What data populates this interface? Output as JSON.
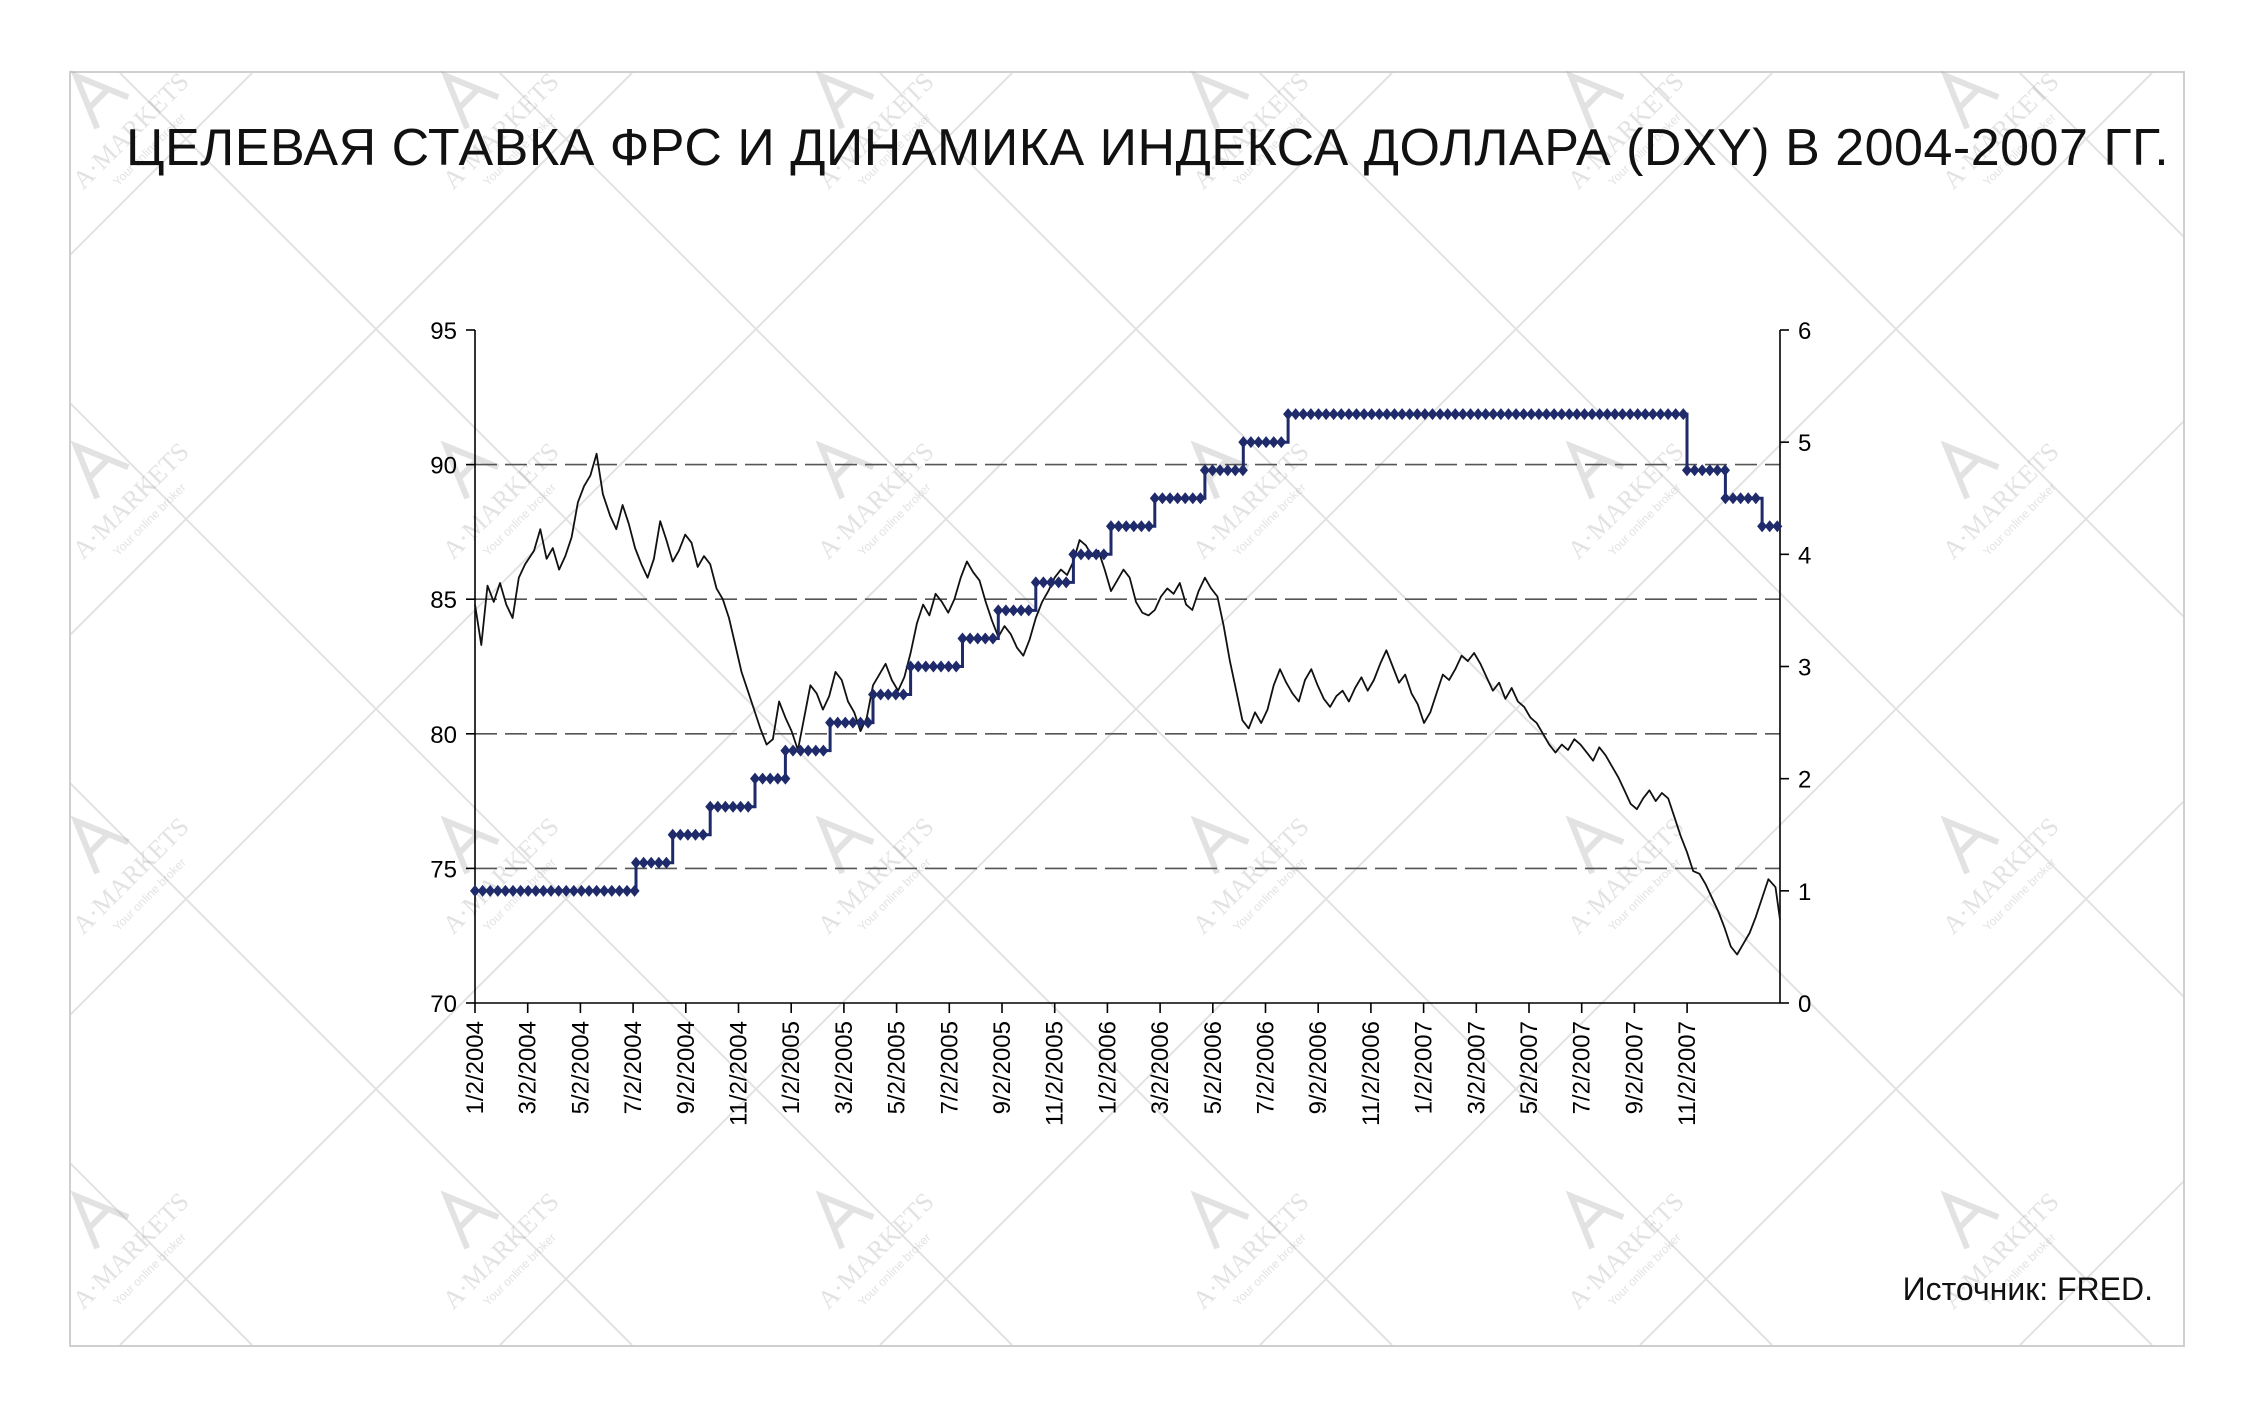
{
  "title": "ЦЕЛЕВАЯ СТАВКА ФРС И ДИНАМИКА ИНДЕКСА ДОЛЛАРА (DXY) В 2004-2007 ГГ.",
  "source": "Источник: FRED.",
  "watermark": {
    "brand": "A·MARKETS",
    "tagline": "Your online broker"
  },
  "colors": {
    "fed_rate": "#1f2a6b",
    "dxy": "#111111",
    "grid": "#555555",
    "frame": "#cfcfcf"
  },
  "chart_data": {
    "type": "line",
    "x_tick_labels": [
      "1/2/2004",
      "3/2/2004",
      "5/2/2004",
      "7/2/2004",
      "9/2/2004",
      "11/2/2004",
      "1/2/2005",
      "3/2/2005",
      "5/2/2005",
      "7/2/2005",
      "9/2/2005",
      "11/2/2005",
      "1/2/2006",
      "3/2/2006",
      "5/2/2006",
      "7/2/2006",
      "9/2/2006",
      "11/2/2006",
      "1/2/2007",
      "3/2/2007",
      "5/2/2007",
      "7/2/2007",
      "9/2/2007",
      "11/2/2007"
    ],
    "xlim": [
      "2004-01-02",
      "2007-12-31"
    ],
    "y_left": {
      "min": 70,
      "max": 95,
      "ticks": [
        70,
        75,
        80,
        85,
        90,
        95
      ]
    },
    "y_right": {
      "min": 0,
      "max": 6,
      "ticks": [
        0,
        1,
        2,
        3,
        4,
        5,
        6
      ]
    },
    "grid": {
      "horizontal_dashed_at_left": [
        75,
        80,
        85,
        90
      ]
    },
    "series": [
      {
        "axis": "left",
        "style": "thin-line",
        "points": [
          [
            "2004-01-02",
            84.8
          ],
          [
            "2004-01-09",
            83.3
          ],
          [
            "2004-01-16",
            85.5
          ],
          [
            "2004-01-23",
            84.9
          ],
          [
            "2004-01-30",
            85.6
          ],
          [
            "2004-02-06",
            84.8
          ],
          [
            "2004-02-13",
            84.3
          ],
          [
            "2004-02-20",
            85.8
          ],
          [
            "2004-02-27",
            86.3
          ],
          [
            "2004-03-08",
            86.8
          ],
          [
            "2004-03-15",
            87.6
          ],
          [
            "2004-03-22",
            86.5
          ],
          [
            "2004-03-29",
            86.9
          ],
          [
            "2004-04-05",
            86.1
          ],
          [
            "2004-04-12",
            86.6
          ],
          [
            "2004-04-19",
            87.3
          ],
          [
            "2004-04-26",
            88.6
          ],
          [
            "2004-05-03",
            89.2
          ],
          [
            "2004-05-10",
            89.6
          ],
          [
            "2004-05-17",
            90.4
          ],
          [
            "2004-05-24",
            88.9
          ],
          [
            "2004-06-01",
            88.1
          ],
          [
            "2004-06-08",
            87.6
          ],
          [
            "2004-06-15",
            88.5
          ],
          [
            "2004-06-22",
            87.8
          ],
          [
            "2004-06-29",
            86.9
          ],
          [
            "2004-07-06",
            86.3
          ],
          [
            "2004-07-13",
            85.8
          ],
          [
            "2004-07-20",
            86.5
          ],
          [
            "2004-07-27",
            87.9
          ],
          [
            "2004-08-03",
            87.2
          ],
          [
            "2004-08-10",
            86.4
          ],
          [
            "2004-08-17",
            86.8
          ],
          [
            "2004-08-24",
            87.4
          ],
          [
            "2004-08-31",
            87.1
          ],
          [
            "2004-09-07",
            86.2
          ],
          [
            "2004-09-14",
            86.6
          ],
          [
            "2004-09-21",
            86.3
          ],
          [
            "2004-09-28",
            85.4
          ],
          [
            "2004-10-05",
            85.0
          ],
          [
            "2004-10-12",
            84.3
          ],
          [
            "2004-10-19",
            83.3
          ],
          [
            "2004-10-26",
            82.3
          ],
          [
            "2004-11-02",
            81.6
          ],
          [
            "2004-11-09",
            80.9
          ],
          [
            "2004-11-16",
            80.2
          ],
          [
            "2004-11-23",
            79.6
          ],
          [
            "2004-11-30",
            79.8
          ],
          [
            "2004-12-07",
            81.2
          ],
          [
            "2004-12-14",
            80.6
          ],
          [
            "2004-12-21",
            80.1
          ],
          [
            "2004-12-28",
            79.4
          ],
          [
            "2005-01-04",
            80.6
          ],
          [
            "2005-01-11",
            81.8
          ],
          [
            "2005-01-18",
            81.5
          ],
          [
            "2005-01-25",
            80.9
          ],
          [
            "2005-02-01",
            81.4
          ],
          [
            "2005-02-08",
            82.3
          ],
          [
            "2005-02-15",
            82.0
          ],
          [
            "2005-02-22",
            81.2
          ],
          [
            "2005-03-01",
            80.8
          ],
          [
            "2005-03-08",
            80.1
          ],
          [
            "2005-03-15",
            80.6
          ],
          [
            "2005-03-22",
            81.8
          ],
          [
            "2005-03-29",
            82.2
          ],
          [
            "2005-04-05",
            82.6
          ],
          [
            "2005-04-12",
            82.0
          ],
          [
            "2005-04-19",
            81.6
          ],
          [
            "2005-04-26",
            82.1
          ],
          [
            "2005-05-03",
            83.0
          ],
          [
            "2005-05-10",
            84.1
          ],
          [
            "2005-05-17",
            84.8
          ],
          [
            "2005-05-24",
            84.4
          ],
          [
            "2005-05-31",
            85.2
          ],
          [
            "2005-06-07",
            84.9
          ],
          [
            "2005-06-14",
            84.5
          ],
          [
            "2005-06-21",
            85.0
          ],
          [
            "2005-06-28",
            85.8
          ],
          [
            "2005-07-05",
            86.4
          ],
          [
            "2005-07-12",
            86.0
          ],
          [
            "2005-07-19",
            85.7
          ],
          [
            "2005-07-26",
            84.9
          ],
          [
            "2005-08-02",
            84.2
          ],
          [
            "2005-08-09",
            83.6
          ],
          [
            "2005-08-16",
            84.0
          ],
          [
            "2005-08-23",
            83.7
          ],
          [
            "2005-08-30",
            83.2
          ],
          [
            "2005-09-06",
            82.9
          ],
          [
            "2005-09-13",
            83.5
          ],
          [
            "2005-09-20",
            84.3
          ],
          [
            "2005-09-27",
            84.9
          ],
          [
            "2005-10-04",
            85.3
          ],
          [
            "2005-10-11",
            85.8
          ],
          [
            "2005-10-18",
            86.1
          ],
          [
            "2005-10-25",
            85.9
          ],
          [
            "2005-11-01",
            86.4
          ],
          [
            "2005-11-08",
            87.2
          ],
          [
            "2005-11-15",
            87.0
          ],
          [
            "2005-11-22",
            86.6
          ],
          [
            "2005-11-29",
            86.8
          ],
          [
            "2005-12-06",
            86.1
          ],
          [
            "2005-12-13",
            85.3
          ],
          [
            "2005-12-20",
            85.7
          ],
          [
            "2005-12-27",
            86.1
          ],
          [
            "2006-01-03",
            85.8
          ],
          [
            "2006-01-10",
            84.9
          ],
          [
            "2006-01-17",
            84.5
          ],
          [
            "2006-01-24",
            84.4
          ],
          [
            "2006-01-31",
            84.6
          ],
          [
            "2006-02-07",
            85.1
          ],
          [
            "2006-02-14",
            85.4
          ],
          [
            "2006-02-21",
            85.2
          ],
          [
            "2006-02-28",
            85.6
          ],
          [
            "2006-03-07",
            84.8
          ],
          [
            "2006-03-14",
            84.6
          ],
          [
            "2006-03-21",
            85.3
          ],
          [
            "2006-03-28",
            85.8
          ],
          [
            "2006-04-04",
            85.4
          ],
          [
            "2006-04-11",
            85.1
          ],
          [
            "2006-04-18",
            84.0
          ],
          [
            "2006-04-25",
            82.7
          ],
          [
            "2006-05-02",
            81.6
          ],
          [
            "2006-05-09",
            80.5
          ],
          [
            "2006-05-16",
            80.2
          ],
          [
            "2006-05-23",
            80.8
          ],
          [
            "2006-05-30",
            80.4
          ],
          [
            "2006-06-06",
            80.9
          ],
          [
            "2006-06-13",
            81.8
          ],
          [
            "2006-06-20",
            82.4
          ],
          [
            "2006-06-27",
            81.9
          ],
          [
            "2006-07-04",
            81.5
          ],
          [
            "2006-07-11",
            81.2
          ],
          [
            "2006-07-18",
            82.0
          ],
          [
            "2006-07-25",
            82.4
          ],
          [
            "2006-08-01",
            81.8
          ],
          [
            "2006-08-08",
            81.3
          ],
          [
            "2006-08-15",
            81.0
          ],
          [
            "2006-08-22",
            81.4
          ],
          [
            "2006-08-29",
            81.6
          ],
          [
            "2006-09-05",
            81.2
          ],
          [
            "2006-09-12",
            81.7
          ],
          [
            "2006-09-19",
            82.1
          ],
          [
            "2006-09-26",
            81.6
          ],
          [
            "2006-10-03",
            82.0
          ],
          [
            "2006-10-10",
            82.6
          ],
          [
            "2006-10-17",
            83.1
          ],
          [
            "2006-10-24",
            82.5
          ],
          [
            "2006-10-31",
            81.9
          ],
          [
            "2006-11-07",
            82.2
          ],
          [
            "2006-11-14",
            81.5
          ],
          [
            "2006-11-21",
            81.1
          ],
          [
            "2006-11-28",
            80.4
          ],
          [
            "2006-12-05",
            80.8
          ],
          [
            "2006-12-12",
            81.5
          ],
          [
            "2006-12-19",
            82.2
          ],
          [
            "2006-12-26",
            82.0
          ],
          [
            "2007-01-02",
            82.4
          ],
          [
            "2007-01-09",
            82.9
          ],
          [
            "2007-01-16",
            82.7
          ],
          [
            "2007-01-23",
            83.0
          ],
          [
            "2007-01-30",
            82.6
          ],
          [
            "2007-02-06",
            82.1
          ],
          [
            "2007-02-13",
            81.6
          ],
          [
            "2007-02-20",
            81.9
          ],
          [
            "2007-02-27",
            81.3
          ],
          [
            "2007-03-06",
            81.7
          ],
          [
            "2007-03-13",
            81.2
          ],
          [
            "2007-03-20",
            81.0
          ],
          [
            "2007-03-27",
            80.6
          ],
          [
            "2007-04-03",
            80.4
          ],
          [
            "2007-04-10",
            80.0
          ],
          [
            "2007-04-17",
            79.6
          ],
          [
            "2007-04-24",
            79.3
          ],
          [
            "2007-05-01",
            79.6
          ],
          [
            "2007-05-08",
            79.4
          ],
          [
            "2007-05-15",
            79.8
          ],
          [
            "2007-05-22",
            79.6
          ],
          [
            "2007-05-29",
            79.3
          ],
          [
            "2007-06-05",
            79.0
          ],
          [
            "2007-06-12",
            79.5
          ],
          [
            "2007-06-19",
            79.2
          ],
          [
            "2007-06-26",
            78.8
          ],
          [
            "2007-07-03",
            78.4
          ],
          [
            "2007-07-10",
            77.9
          ],
          [
            "2007-07-17",
            77.4
          ],
          [
            "2007-07-24",
            77.2
          ],
          [
            "2007-07-31",
            77.6
          ],
          [
            "2007-08-07",
            77.9
          ],
          [
            "2007-08-14",
            77.5
          ],
          [
            "2007-08-21",
            77.8
          ],
          [
            "2007-08-28",
            77.6
          ],
          [
            "2007-09-04",
            76.9
          ],
          [
            "2007-09-11",
            76.2
          ],
          [
            "2007-09-18",
            75.6
          ],
          [
            "2007-09-25",
            74.9
          ],
          [
            "2007-10-02",
            74.8
          ],
          [
            "2007-10-09",
            74.4
          ],
          [
            "2007-10-16",
            73.9
          ],
          [
            "2007-10-23",
            73.4
          ],
          [
            "2007-10-30",
            72.8
          ],
          [
            "2007-11-06",
            72.1
          ],
          [
            "2007-11-13",
            71.8
          ],
          [
            "2007-11-20",
            72.2
          ],
          [
            "2007-11-27",
            72.6
          ],
          [
            "2007-12-04",
            73.2
          ],
          [
            "2007-12-11",
            73.9
          ],
          [
            "2007-12-18",
            74.6
          ],
          [
            "2007-12-26",
            74.3
          ],
          [
            "2007-12-31",
            73.1
          ]
        ]
      },
      {
        "axis": "right",
        "style": "step-diamond-markers",
        "steps": [
          [
            "2004-01-02",
            1.0
          ],
          [
            "2004-06-30",
            1.25
          ],
          [
            "2004-08-10",
            1.5
          ],
          [
            "2004-09-21",
            1.75
          ],
          [
            "2004-11-10",
            2.0
          ],
          [
            "2004-12-14",
            2.25
          ],
          [
            "2005-02-02",
            2.5
          ],
          [
            "2005-03-22",
            2.75
          ],
          [
            "2005-05-03",
            3.0
          ],
          [
            "2005-06-30",
            3.25
          ],
          [
            "2005-08-09",
            3.5
          ],
          [
            "2005-09-20",
            3.75
          ],
          [
            "2005-11-01",
            4.0
          ],
          [
            "2005-12-13",
            4.25
          ],
          [
            "2006-01-31",
            4.5
          ],
          [
            "2006-03-28",
            4.75
          ],
          [
            "2006-05-10",
            5.0
          ],
          [
            "2006-06-29",
            5.25
          ],
          [
            "2007-09-18",
            4.75
          ],
          [
            "2007-10-31",
            4.5
          ],
          [
            "2007-12-11",
            4.25
          ]
        ],
        "end": "2007-12-31"
      }
    ]
  }
}
